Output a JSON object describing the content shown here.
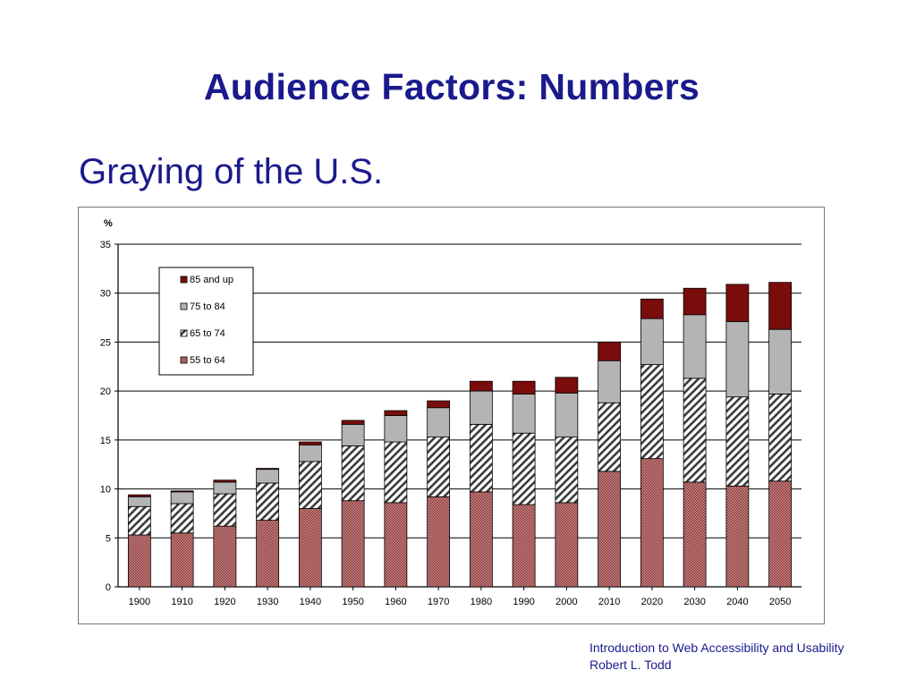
{
  "slide": {
    "title": "Audience Factors: Numbers",
    "subtitle": "Graying of the U.S."
  },
  "footer": {
    "line1": "Introduction to Web Accessibility and Usability",
    "line2": "Robert L. Todd"
  },
  "chart_data": {
    "type": "bar",
    "stacked": true,
    "ylabel": "%",
    "ylim": [
      0,
      35
    ],
    "yticks": [
      0,
      5,
      10,
      15,
      20,
      25,
      30,
      35
    ],
    "grid": true,
    "legend_position": "top-left",
    "categories": [
      "1900",
      "1910",
      "1920",
      "1930",
      "1940",
      "1950",
      "1960",
      "1970",
      "1980",
      "1990",
      "2000",
      "2010",
      "2020",
      "2030",
      "2040",
      "2050"
    ],
    "series": [
      {
        "name": "55 to 64",
        "color": "#a85a5a",
        "pattern": "checker",
        "values": [
          5.3,
          5.5,
          6.2,
          6.8,
          8.0,
          8.8,
          8.6,
          9.2,
          9.7,
          8.4,
          8.6,
          11.8,
          13.1,
          10.7,
          10.3,
          10.8
        ]
      },
      {
        "name": "65 to 74",
        "color": "#555555",
        "pattern": "hatch",
        "values": [
          2.9,
          3.0,
          3.3,
          3.8,
          4.8,
          5.6,
          6.2,
          6.1,
          6.9,
          7.3,
          6.7,
          7.0,
          9.6,
          10.6,
          9.1,
          8.9
        ]
      },
      {
        "name": "75 to 84",
        "color": "#b4b4b4",
        "pattern": "solid",
        "values": [
          1.0,
          1.2,
          1.2,
          1.4,
          1.7,
          2.2,
          2.7,
          3.0,
          3.4,
          4.0,
          4.5,
          4.3,
          4.7,
          6.5,
          7.7,
          6.6
        ]
      },
      {
        "name": "85 and up",
        "color": "#7a0c0c",
        "pattern": "solid",
        "values": [
          0.2,
          0.1,
          0.2,
          0.1,
          0.3,
          0.4,
          0.5,
          0.7,
          1.0,
          1.3,
          1.6,
          1.9,
          2.0,
          2.7,
          3.8,
          4.8
        ]
      }
    ],
    "legend_order": [
      "85 and up",
      "75 to 84",
      "65 to 74",
      "55 to 64"
    ]
  }
}
